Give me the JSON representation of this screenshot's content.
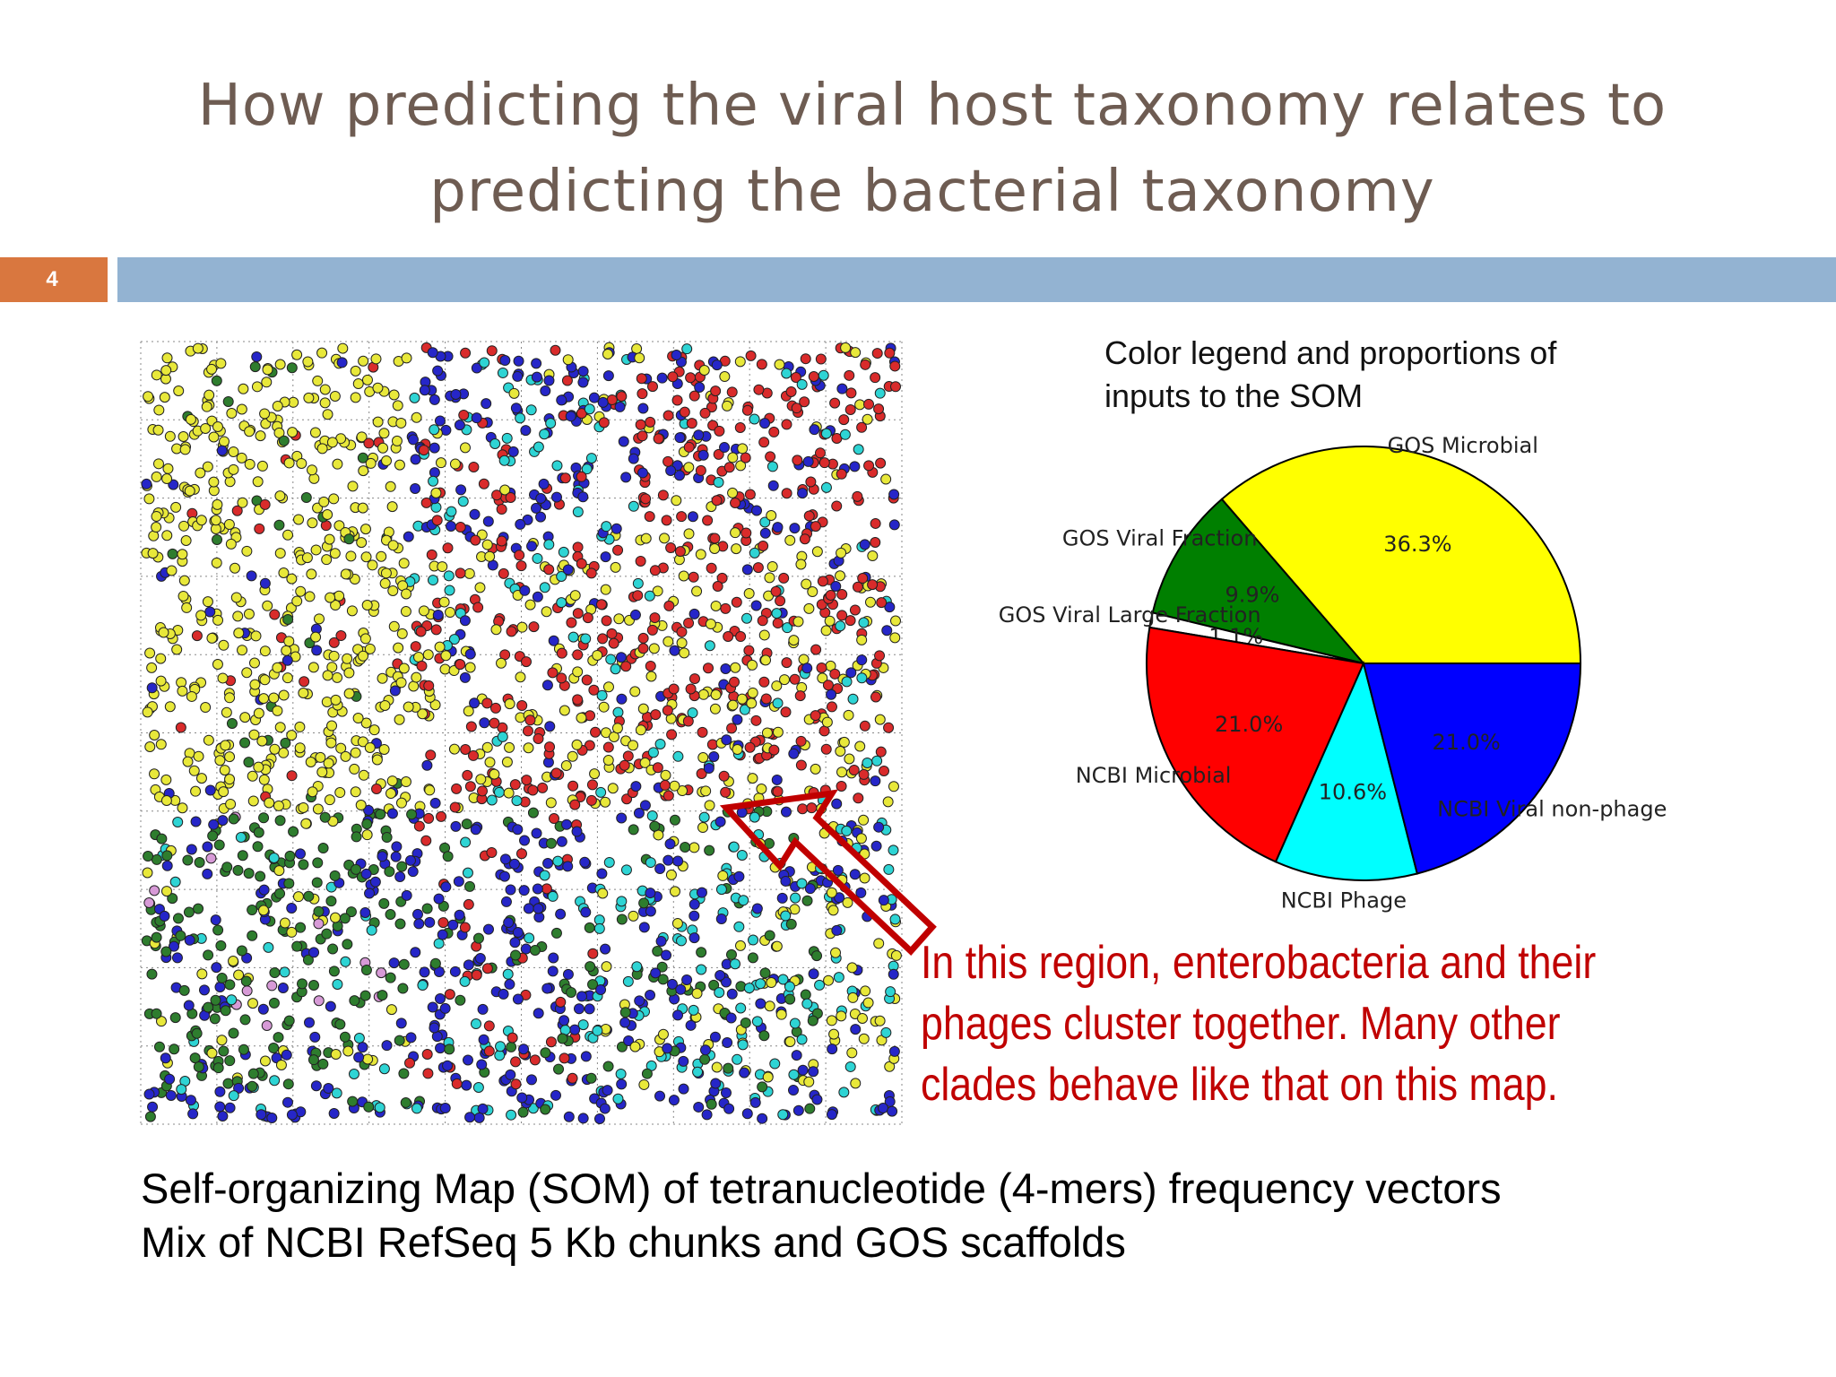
{
  "slide": {
    "title": "How predicting the viral host taxonomy relates to predicting the bacterial taxonomy",
    "number": "4"
  },
  "chart_data": {
    "type": "pie",
    "title": "Color legend and proportions of inputs to the SOM",
    "categories": [
      "GOS Microbial",
      "GOS Viral Fraction",
      "GOS Viral Large Fraction",
      "NCBI Microbial",
      "NCBI Phage",
      "NCBI Viral non-phage"
    ],
    "values": [
      36.3,
      9.9,
      1.1,
      21.0,
      10.6,
      21.0
    ],
    "value_labels": [
      "36.3%",
      "9.9%",
      "1.1%",
      "21.0%",
      "10.6%",
      "21.0%"
    ],
    "colors": [
      "#ffff00",
      "#007f00",
      "#ffffff",
      "#ff0000",
      "#00ffff",
      "#0000ff"
    ]
  },
  "annotation": "In this region, enterobacteria and their phages cluster together. Many other clades behave like that on this map.",
  "caption": [
    "Self-organizing Map (SOM) of tetranucleotide (4-mers) frequency vectors",
    "Mix of NCBI RefSeq 5 Kb chunks and GOS scaffolds"
  ]
}
